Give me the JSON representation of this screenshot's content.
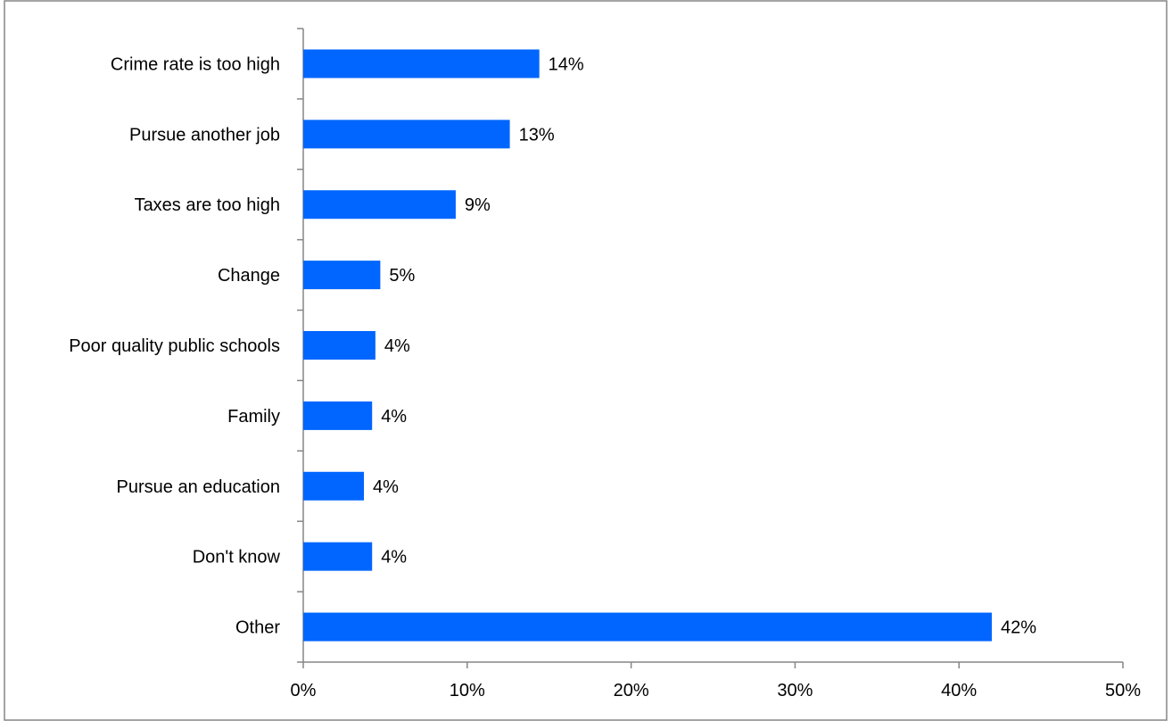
{
  "chart_data": {
    "type": "bar",
    "orientation": "horizontal",
    "title": "",
    "xlabel": "",
    "ylabel": "",
    "categories": [
      "Crime rate is too high",
      "Pursue another job",
      "Taxes are too high",
      "Change",
      "Poor quality public schools",
      "Family",
      "Pursue an education",
      "Don't know",
      "Other"
    ],
    "values": [
      14.4,
      12.6,
      9.3,
      4.7,
      4.4,
      4.2,
      3.7,
      4.2,
      42.0
    ],
    "data_labels": [
      "14%",
      "13%",
      "9%",
      "5%",
      "4%",
      "4%",
      "4%",
      "4%",
      "42%"
    ],
    "xlim": [
      0,
      50
    ],
    "x_ticks": [
      0,
      10,
      20,
      30,
      40,
      50
    ],
    "x_tick_labels": [
      "0%",
      "10%",
      "20%",
      "30%",
      "40%",
      "50%"
    ],
    "grid": false,
    "legend": "none",
    "bar_color": "#0066FF",
    "axis_color": "#868686",
    "border_color": "#868686"
  }
}
